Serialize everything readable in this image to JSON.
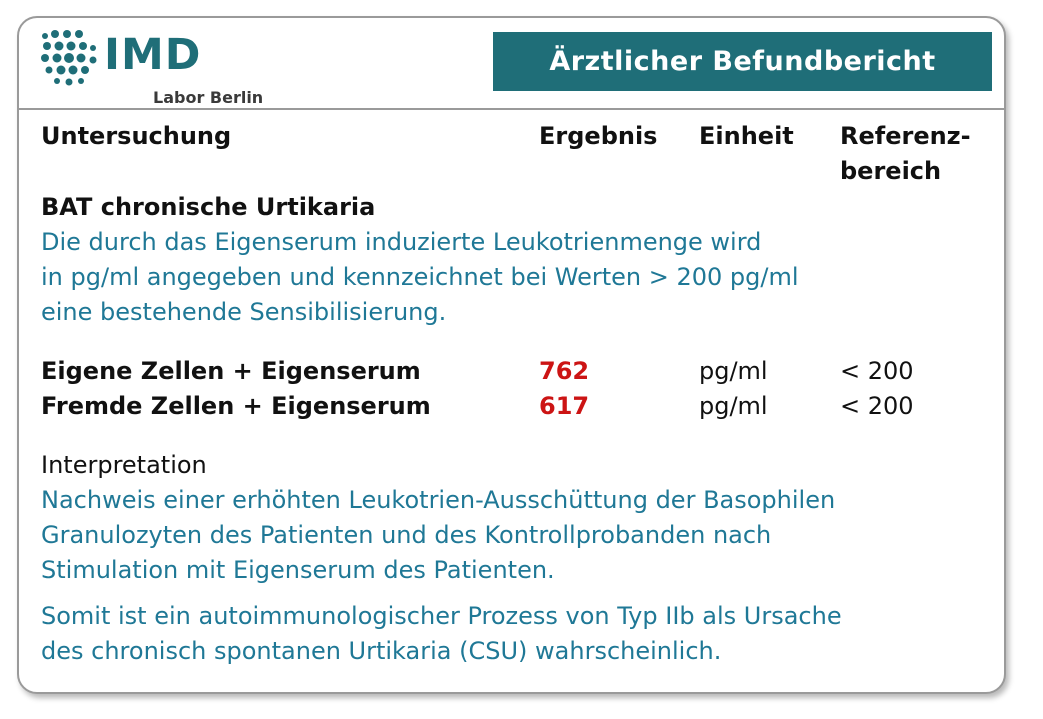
{
  "brand": {
    "name": "IMD",
    "subtitle": "Labor Berlin"
  },
  "title": "Ärztlicher Befundbericht",
  "columns": {
    "test": "Untersuchung",
    "result": "Ergebnis",
    "unit": "Einheit",
    "reference_line1": "Referenz-",
    "reference_line2": "bereich"
  },
  "section": {
    "heading": "BAT chronische Urtikaria",
    "description": [
      "Die durch das Eigenserum induzierte Leukotrienmenge wird",
      "in pg/ml angegeben und kennzeichnet bei Werten > 200 pg/ml",
      "eine bestehende Sensibilisierung."
    ]
  },
  "rows": [
    {
      "test": "Eigene Zellen + Eigenserum",
      "result": "762",
      "unit": "pg/ml",
      "reference": "< 200"
    },
    {
      "test": "Fremde Zellen + Eigenserum",
      "result": "617",
      "unit": "pg/ml",
      "reference": "< 200"
    }
  ],
  "interpretation": {
    "label": "Interpretation",
    "paragraph1": [
      "Nachweis einer erhöhten Leukotrien-Ausschüttung der Basophilen",
      "Granulozyten des Patienten und des Kontrollprobanden nach",
      "Stimulation mit Eigenserum des Patienten."
    ],
    "paragraph2": [
      "Somit ist ein autoimmunologischer Prozess von Typ IIb als Ursache",
      "des chronisch spontanen Urtikaria (CSU) wahrscheinlich."
    ]
  },
  "colors": {
    "brand_teal": "#1f6e78",
    "text_blue": "#1f7896",
    "result_red": "#cc1414",
    "border_gray": "#9a9a9a"
  }
}
